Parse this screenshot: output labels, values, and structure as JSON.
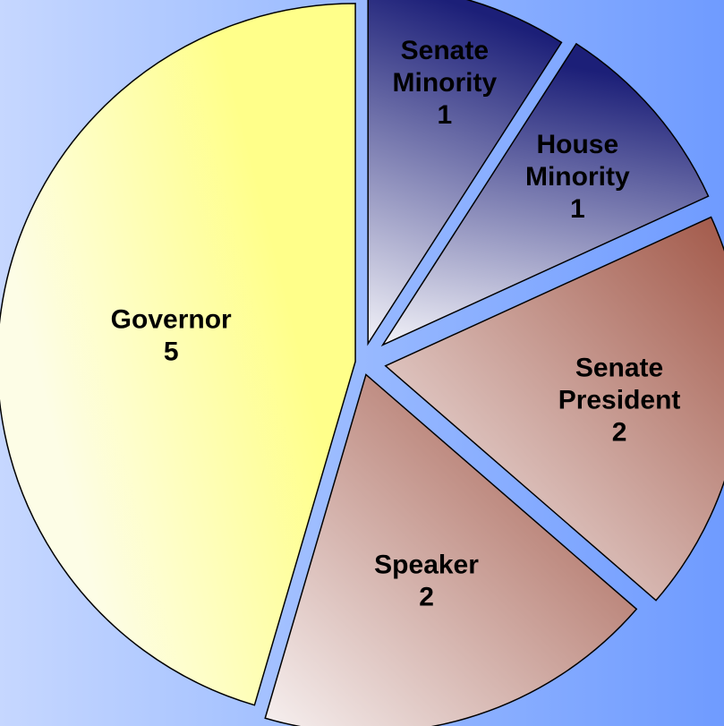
{
  "chart_data": {
    "type": "pie",
    "title": "",
    "slices": [
      {
        "label_lines": [
          "Governor"
        ],
        "value": 5,
        "fill": "yellow"
      },
      {
        "label_lines": [
          "Speaker"
        ],
        "value": 2,
        "fill": "brown"
      },
      {
        "label_lines": [
          "Senate",
          "President"
        ],
        "value": 2,
        "fill": "brown"
      },
      {
        "label_lines": [
          "House",
          "Minority"
        ],
        "value": 1,
        "fill": "blue"
      },
      {
        "label_lines": [
          "Senate",
          "Minority"
        ],
        "value": 1,
        "fill": "blue"
      }
    ],
    "exploded": true,
    "legend": "none",
    "data_labels": "category and value inside slices"
  },
  "colors": {
    "background_light": "#c6d7ff",
    "background_dark": "#6f9bff",
    "yellow_light": "#fdfde6",
    "yellow_dark": "#ffff8a",
    "brown_light": "#f7f1f1",
    "brown_dark": "#a05545",
    "blue_light": "#f2f2f8",
    "blue_dark": "#1c1f78",
    "outline": "#000000"
  }
}
